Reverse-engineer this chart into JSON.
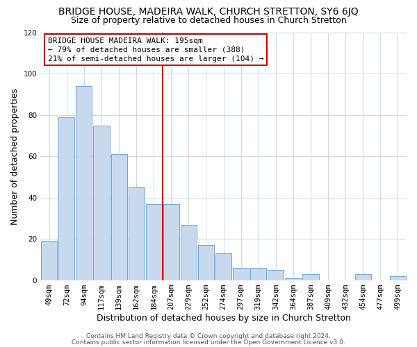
{
  "title": "BRIDGE HOUSE, MADEIRA WALK, CHURCH STRETTON, SY6 6JQ",
  "subtitle": "Size of property relative to detached houses in Church Stretton",
  "xlabel": "Distribution of detached houses by size in Church Stretton",
  "ylabel": "Number of detached properties",
  "bar_labels": [
    "49sqm",
    "72sqm",
    "94sqm",
    "117sqm",
    "139sqm",
    "162sqm",
    "184sqm",
    "207sqm",
    "229sqm",
    "252sqm",
    "274sqm",
    "297sqm",
    "319sqm",
    "342sqm",
    "364sqm",
    "387sqm",
    "409sqm",
    "432sqm",
    "454sqm",
    "477sqm",
    "499sqm"
  ],
  "bar_values": [
    19,
    79,
    94,
    75,
    61,
    45,
    37,
    37,
    27,
    17,
    13,
    6,
    6,
    5,
    1,
    3,
    0,
    0,
    3,
    0,
    2
  ],
  "bar_color": "#c9d9ed",
  "bar_edge_color": "#5b9bd5",
  "vline_color": "#cc0000",
  "ylim": [
    0,
    120
  ],
  "yticks": [
    0,
    20,
    40,
    60,
    80,
    100,
    120
  ],
  "annotation_line1": "BRIDGE HOUSE MADEIRA WALK: 195sqm",
  "annotation_line2": "← 79% of detached houses are smaller (388)",
  "annotation_line3": "21% of semi-detached houses are larger (104) →",
  "annotation_box_color": "#cc0000",
  "footer1": "Contains HM Land Registry data © Crown copyright and database right 2024.",
  "footer2": "Contains public sector information licensed under the Open Government Licence v3.0.",
  "background_color": "#ffffff",
  "grid_color": "#c8d8e8",
  "title_fontsize": 10,
  "subtitle_fontsize": 9,
  "axis_label_fontsize": 9,
  "tick_fontsize": 7.5,
  "annotation_fontsize": 8,
  "footer_fontsize": 6.5
}
